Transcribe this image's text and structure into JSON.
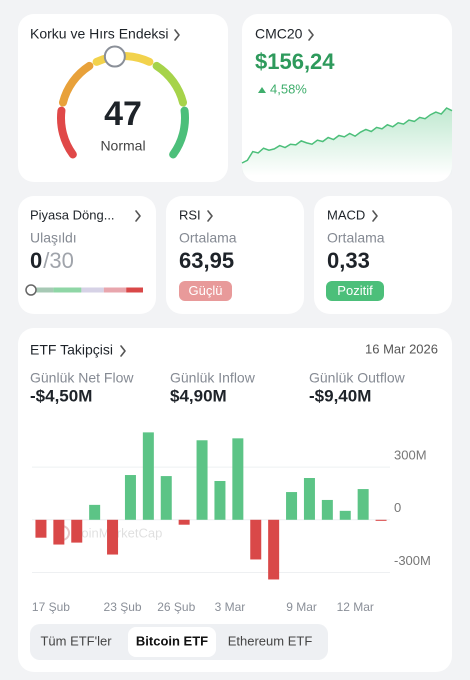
{
  "fear_greed": {
    "title": "Korku ve Hırs Endeksi",
    "value": 47,
    "label": "Normal",
    "range": [
      0,
      100
    ]
  },
  "cmc20": {
    "title": "CMC20",
    "price": "$156,24",
    "change": "4,58%"
  },
  "cycle": {
    "title": "Piyasa Döng...",
    "status": "Ulaşıldı",
    "value": 0,
    "of": "/30",
    "range": [
      0,
      30
    ]
  },
  "rsi": {
    "title": "RSI",
    "status": "Ortalama",
    "value": "63,95",
    "badge": "Güçlü"
  },
  "macd": {
    "title": "MACD",
    "status": "Ortalama",
    "value": "0,33",
    "badge": "Pozitif"
  },
  "etf": {
    "title": "ETF Takipçisi",
    "date": "16 Mar 2026",
    "stats": [
      {
        "label": "Günlük Net Flow",
        "value": "-$4,50M"
      },
      {
        "label": "Günlük Inflow",
        "value": "$4,90M"
      },
      {
        "label": "Günlük Outflow",
        "value": "-$9,40M"
      }
    ],
    "watermark": "CoinMarketCap",
    "tabs": [
      "Tüm ETF'ler",
      "Bitcoin ETF",
      "Ethereum ETF"
    ],
    "selected_tab": 1
  },
  "chart_data": [
    {
      "type": "line",
      "color": "#4cbf7a",
      "values": [
        148.2,
        148.6,
        149.9,
        149.7,
        150.4,
        150.1,
        150.3,
        150.8,
        150.5,
        151.0,
        150.9,
        151.5,
        151.2,
        151.0,
        151.6,
        151.4,
        152.0,
        151.7,
        152.3,
        152.1,
        152.6,
        152.2,
        152.8,
        153.2,
        152.9,
        153.5,
        153.3,
        153.9,
        153.6,
        154.2,
        154.0,
        154.6,
        154.4,
        155.0,
        154.8,
        155.4,
        155.8,
        155.5,
        156.4,
        156.0
      ]
    },
    {
      "type": "bar",
      "pos_color": "#5cc486",
      "neg_color": "#d94848",
      "categories": [
        "17 Şub",
        null,
        null,
        null,
        "23 Şub",
        null,
        null,
        "26 Şub",
        null,
        null,
        "3 Mar",
        null,
        null,
        null,
        "9 Mar",
        null,
        null,
        "12 Mar",
        null,
        null
      ],
      "values": [
        -102,
        -141,
        -130,
        85,
        -198,
        255,
        498,
        249,
        -28,
        453,
        221,
        464,
        -226,
        -340,
        158,
        238,
        113,
        51,
        175,
        -6
      ],
      "ylim": [
        -400,
        540
      ],
      "yticks": [
        {
          "value": 300,
          "label": "300M"
        },
        0,
        {
          "value": -300,
          "label": "-300M"
        }
      ]
    }
  ]
}
